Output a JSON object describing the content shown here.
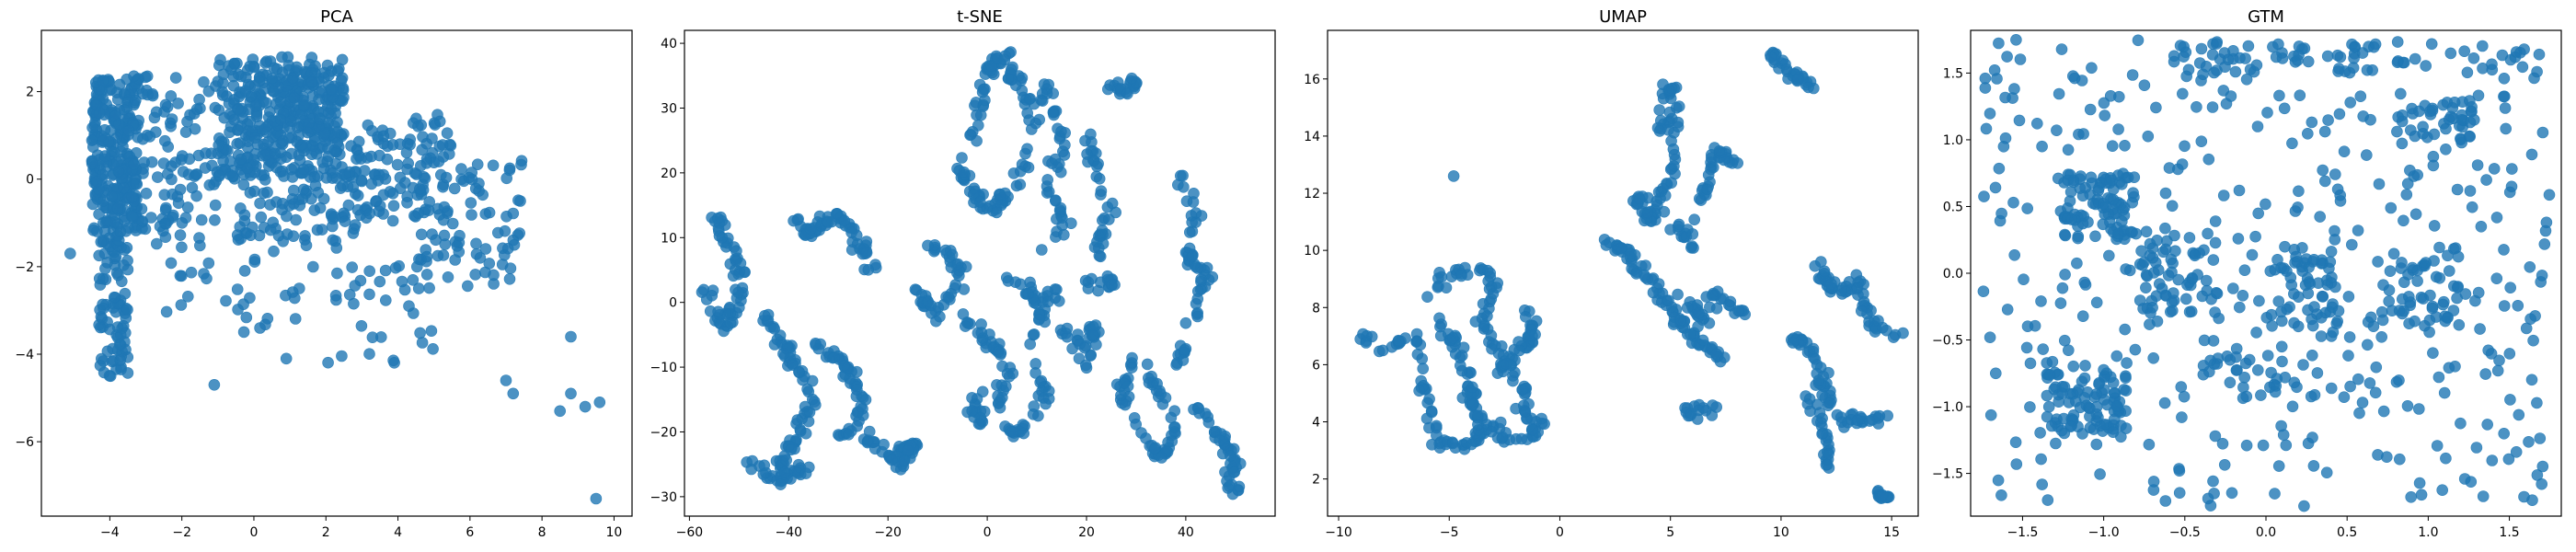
{
  "figure": {
    "background": "#ffffff"
  },
  "chart_data": [
    {
      "type": "scatter",
      "title": "PCA",
      "xlabel": "",
      "ylabel": "",
      "xlim": [
        -5.9,
        10.5
      ],
      "ylim": [
        -7.7,
        3.4
      ],
      "xticks": [
        -4,
        -2,
        0,
        2,
        4,
        6,
        8,
        10
      ],
      "yticks": [
        -6,
        -4,
        -2,
        0,
        2
      ],
      "xtick_labels": [
        "−4",
        "−2",
        "0",
        "2",
        "4",
        "6",
        "8",
        "10"
      ],
      "ytick_labels": [
        "−6",
        "−4",
        "−2",
        "0",
        "2"
      ],
      "color": "#1f77b4",
      "grid": false,
      "clusters": [
        {
          "x": [
            -4.5,
            -3.2
          ],
          "y": [
            -1.2,
            2.3
          ],
          "n": 260
        },
        {
          "x": [
            -4.3,
            -3.5
          ],
          "y": [
            -4.5,
            -1.2
          ],
          "n": 90
        },
        {
          "x": [
            -3.5,
            -1.0
          ],
          "y": [
            -1.5,
            2.4
          ],
          "n": 110
        },
        {
          "x": [
            -1.0,
            2.5
          ],
          "y": [
            0.0,
            2.8
          ],
          "n": 280
        },
        {
          "x": [
            0.5,
            2.5
          ],
          "y": [
            1.0,
            2.6
          ],
          "n": 90
        },
        {
          "x": [
            -0.5,
            3.0
          ],
          "y": [
            -1.5,
            1.0
          ],
          "n": 110
        },
        {
          "x": [
            2.5,
            5.5
          ],
          "y": [
            -1.0,
            1.5
          ],
          "n": 110
        },
        {
          "x": [
            4.5,
            7.5
          ],
          "y": [
            -2.5,
            0.5
          ],
          "n": 80
        },
        {
          "x": [
            -2.5,
            2.0
          ],
          "y": [
            -3.5,
            -1.0
          ],
          "n": 40
        },
        {
          "x": [
            2.0,
            5.0
          ],
          "y": [
            -4.2,
            -1.5
          ],
          "n": 35
        }
      ],
      "points": [
        [
          -1.1,
          -4.7
        ],
        [
          0.9,
          -4.1
        ],
        [
          7.0,
          -4.6
        ],
        [
          7.2,
          -4.9
        ],
        [
          8.5,
          -5.3
        ],
        [
          8.8,
          -4.9
        ],
        [
          9.2,
          -5.2
        ],
        [
          9.6,
          -5.1
        ],
        [
          8.8,
          -3.6
        ],
        [
          9.5,
          -7.3
        ],
        [
          -5.1,
          -1.7
        ]
      ]
    },
    {
      "type": "scatter",
      "title": "t-SNE",
      "xlabel": "",
      "ylabel": "",
      "xlim": [
        -61,
        58
      ],
      "ylim": [
        -33,
        42
      ],
      "xticks": [
        -60,
        -40,
        -20,
        0,
        20,
        40
      ],
      "yticks": [
        -30,
        -20,
        -10,
        0,
        10,
        20,
        30,
        40
      ],
      "xtick_labels": [
        "−60",
        "−40",
        "−20",
        "0",
        "20",
        "40"
      ],
      "ytick_labels": [
        "−30",
        "−20",
        "−10",
        "0",
        "10",
        "20",
        "30",
        "40"
      ],
      "color": "#1f77b4",
      "grid": false,
      "strokes": [
        {
          "pts": [
            [
              -55,
              14
            ],
            [
              -52,
              8
            ],
            [
              -49,
              3
            ],
            [
              -53,
              -4
            ],
            [
              -57,
              2
            ]
          ],
          "n": 60
        },
        {
          "pts": [
            [
              -40,
              14
            ],
            [
              -36,
              10
            ],
            [
              -30,
              14
            ],
            [
              -26,
              10
            ],
            [
              -22,
              4
            ]
          ],
          "n": 60
        },
        {
          "pts": [
            [
              -45,
              -2
            ],
            [
              -40,
              -8
            ],
            [
              -35,
              -14
            ],
            [
              -38,
              -20
            ],
            [
              -42,
              -26
            ]
          ],
          "n": 70
        },
        {
          "pts": [
            [
              -35,
              -6
            ],
            [
              -28,
              -10
            ],
            [
              -25,
              -16
            ],
            [
              -30,
              -22
            ]
          ],
          "n": 50
        },
        {
          "pts": [
            [
              -48,
              -24
            ],
            [
              -42,
              -28
            ],
            [
              -36,
              -25
            ]
          ],
          "n": 30
        },
        {
          "pts": [
            [
              -25,
              -20
            ],
            [
              -20,
              -24
            ],
            [
              -15,
              -22
            ],
            [
              -18,
              -26
            ]
          ],
          "n": 50
        },
        {
          "pts": [
            [
              -15,
              2
            ],
            [
              -10,
              -2
            ],
            [
              -5,
              4
            ],
            [
              -8,
              8
            ],
            [
              -12,
              9
            ]
          ],
          "n": 45
        },
        {
          "pts": [
            [
              -5,
              22
            ],
            [
              -2,
              28
            ],
            [
              0,
              36
            ],
            [
              3,
              38
            ],
            [
              6,
              34
            ],
            [
              9,
              30
            ],
            [
              8,
              22
            ],
            [
              5,
              18
            ],
            [
              1,
              14
            ],
            [
              -3,
              17
            ],
            [
              -6,
              22
            ]
          ],
          "n": 110
        },
        {
          "pts": [
            [
              -5,
              -2
            ],
            [
              0,
              -6
            ],
            [
              5,
              -10
            ],
            [
              2,
              -16
            ],
            [
              -2,
              -19
            ],
            [
              -3,
              -14
            ]
          ],
          "n": 55
        },
        {
          "pts": [
            [
              5,
              4
            ],
            [
              10,
              0
            ],
            [
              14,
              2
            ],
            [
              8,
              -6
            ],
            [
              12,
              -14
            ],
            [
              8,
              -20
            ],
            [
              4,
              -20
            ]
          ],
          "n": 65
        },
        {
          "pts": [
            [
              10,
              30
            ],
            [
              13,
              34
            ],
            [
              15,
              24
            ],
            [
              12,
              18
            ],
            [
              16,
              12
            ],
            [
              12,
              8
            ]
          ],
          "n": 45
        },
        {
          "pts": [
            [
              20,
              26
            ],
            [
              22,
              20
            ],
            [
              25,
              14
            ],
            [
              22,
              8
            ],
            [
              26,
              2
            ],
            [
              20,
              3
            ]
          ],
          "n": 50
        },
        {
          "pts": [
            [
              25,
              34
            ],
            [
              28,
              32
            ],
            [
              30,
              34
            ]
          ],
          "n": 20
        },
        {
          "pts": [
            [
              30,
              -8
            ],
            [
              27,
              -14
            ],
            [
              31,
              -20
            ],
            [
              35,
              -24
            ],
            [
              38,
              -20
            ],
            [
              35,
              -14
            ],
            [
              30,
              -10
            ]
          ],
          "n": 60
        },
        {
          "pts": [
            [
              38,
              20
            ],
            [
              42,
              14
            ],
            [
              40,
              8
            ],
            [
              44,
              4
            ],
            [
              41,
              -4
            ],
            [
              38,
              -10
            ]
          ],
          "n": 55
        },
        {
          "pts": [
            [
              42,
              -16
            ],
            [
              46,
              -20
            ],
            [
              50,
              -24
            ],
            [
              48,
              -28
            ],
            [
              52,
              -30
            ]
          ],
          "n": 45
        },
        {
          "pts": [
            [
              12,
              -2
            ],
            [
              18,
              -6
            ],
            [
              22,
              -4
            ],
            [
              20,
              -10
            ]
          ],
          "n": 30
        }
      ]
    },
    {
      "type": "scatter",
      "title": "UMAP",
      "xlabel": "",
      "ylabel": "",
      "xlim": [
        -10.5,
        16.2
      ],
      "ylim": [
        0.7,
        17.7
      ],
      "xticks": [
        -10,
        -5,
        0,
        5,
        10,
        15
      ],
      "yticks": [
        2,
        4,
        6,
        8,
        10,
        12,
        14,
        16
      ],
      "xtick_labels": [
        "−10",
        "−5",
        "0",
        "5",
        "10",
        "15"
      ],
      "ytick_labels": [
        "2",
        "4",
        "6",
        "8",
        "10",
        "12",
        "14",
        "16"
      ],
      "color": "#1f77b4",
      "grid": false,
      "strokes": [
        {
          "pts": [
            [
              -9.5,
              7.2
            ],
            [
              -8,
              6.7
            ],
            [
              -6.5,
              7.0
            ],
            [
              -6.0,
              5.0
            ],
            [
              -5.5,
              3.3
            ],
            [
              -4,
              3.2
            ],
            [
              -3.0,
              4.0
            ],
            [
              -2.5,
              3.4
            ],
            [
              -1.5,
              3.4
            ],
            [
              -0.8,
              4.0
            ]
          ],
          "n": 90
        },
        {
          "pts": [
            [
              -6.0,
              8.5
            ],
            [
              -5.0,
              9.2
            ],
            [
              -3.8,
              9.5
            ],
            [
              -3.0,
              9.0
            ],
            [
              -3.5,
              7.5
            ],
            [
              -2.5,
              6.0
            ],
            [
              -1.5,
              5.0
            ],
            [
              -1.5,
              4.0
            ]
          ],
          "n": 70
        },
        {
          "pts": [
            [
              -5.5,
              7.5
            ],
            [
              -4.5,
              6.5
            ],
            [
              -4.0,
              5.0
            ],
            [
              -3.5,
              3.5
            ]
          ],
          "n": 50
        },
        {
          "pts": [
            [
              -1.5,
              8.0
            ],
            [
              -1.2,
              7.0
            ],
            [
              -2.0,
              6.2
            ],
            [
              -3.0,
              5.8
            ]
          ],
          "n": 35
        },
        {
          "pts": [
            [
              2.0,
              10.3
            ],
            [
              3.0,
              10.0
            ],
            [
              4.0,
              9.0
            ],
            [
              5.0,
              8.0
            ],
            [
              6.0,
              7.0
            ],
            [
              7.5,
              6.0
            ]
          ],
          "n": 80
        },
        {
          "pts": [
            [
              3.5,
              12.0
            ],
            [
              4.0,
              11.0
            ],
            [
              5.0,
              12.5
            ],
            [
              5.2,
              14.5
            ],
            [
              5.0,
              15.8
            ],
            [
              4.5,
              14.0
            ]
          ],
          "n": 70
        },
        {
          "pts": [
            [
              5.0,
              11.0
            ],
            [
              6.0,
              10.0
            ],
            [
              6.5,
              12.0
            ],
            [
              7.0,
              13.5
            ],
            [
              8.0,
              13.0
            ]
          ],
          "n": 45
        },
        {
          "pts": [
            [
              5.5,
              8.5
            ],
            [
              6.5,
              7.5
            ],
            [
              7.0,
              8.5
            ],
            [
              8.0,
              8.0
            ],
            [
              8.5,
              7.5
            ]
          ],
          "n": 35
        },
        {
          "pts": [
            [
              5.5,
              4.2
            ],
            [
              7.0,
              4.5
            ]
          ],
          "n": 15
        },
        {
          "pts": [
            [
              9.2,
              17.1
            ],
            [
              10.0,
              16.5
            ],
            [
              10.8,
              16.0
            ],
            [
              11.5,
              15.8
            ]
          ],
          "n": 30
        },
        {
          "pts": [
            [
              10.5,
              7.0
            ],
            [
              11.5,
              6.5
            ],
            [
              12.0,
              5.0
            ],
            [
              13.0,
              4.0
            ],
            [
              14.5,
              4.2
            ]
          ],
          "n": 60
        },
        {
          "pts": [
            [
              11.5,
              9.5
            ],
            [
              12.5,
              8.5
            ],
            [
              13.5,
              9.0
            ],
            [
              14.0,
              7.5
            ],
            [
              15.5,
              7.0
            ]
          ],
          "n": 55
        },
        {
          "pts": [
            [
              11.0,
              5.5
            ],
            [
              12.0,
              3.5
            ],
            [
              12.0,
              2.3
            ]
          ],
          "n": 25
        },
        {
          "pts": [
            [
              14.5,
              1.5
            ],
            [
              14.7,
              1.4
            ]
          ],
          "n": 14
        }
      ],
      "points": [
        [
          -4.8,
          12.6
        ],
        [
          -8.0,
          6.5
        ]
      ]
    },
    {
      "type": "scatter",
      "title": "GTM",
      "xlabel": "",
      "ylabel": "",
      "xlim": [
        -1.82,
        1.82
      ],
      "ylim": [
        -1.82,
        1.82
      ],
      "xticks": [
        -1.5,
        -1.0,
        -0.5,
        0.0,
        0.5,
        1.0,
        1.5
      ],
      "yticks": [
        -1.5,
        -1.0,
        -0.5,
        0.0,
        0.5,
        1.0,
        1.5
      ],
      "xtick_labels": [
        "−1.5",
        "−1.0",
        "−0.5",
        "0.0",
        "0.5",
        "1.0",
        "1.5"
      ],
      "ytick_labels": [
        "−1.5",
        "−1.0",
        "−0.5",
        "0.0",
        "0.5",
        "1.0",
        "1.5"
      ],
      "color": "#1f77b4",
      "grid": false,
      "clusters": [
        {
          "x": [
            -1.75,
            1.75
          ],
          "y": [
            -1.75,
            1.75
          ],
          "n": 380
        },
        {
          "x": [
            -1.25,
            -0.8
          ],
          "y": [
            0.25,
            0.75
          ],
          "n": 90
        },
        {
          "x": [
            -1.4,
            -0.85
          ],
          "y": [
            -1.2,
            -0.65
          ],
          "n": 90
        },
        {
          "x": [
            -0.8,
            -0.3
          ],
          "y": [
            -0.3,
            0.3
          ],
          "n": 60
        },
        {
          "x": [
            0.0,
            0.45
          ],
          "y": [
            -0.4,
            0.2
          ],
          "n": 60
        },
        {
          "x": [
            0.7,
            1.2
          ],
          "y": [
            -0.4,
            0.2
          ],
          "n": 50
        },
        {
          "x": [
            -0.6,
            1.6
          ],
          "y": [
            1.5,
            1.72
          ],
          "n": 70
        },
        {
          "x": [
            0.8,
            1.3
          ],
          "y": [
            1.0,
            1.3
          ],
          "n": 40
        },
        {
          "x": [
            -0.4,
            0.3
          ],
          "y": [
            -0.95,
            -0.6
          ],
          "n": 30
        }
      ]
    }
  ]
}
